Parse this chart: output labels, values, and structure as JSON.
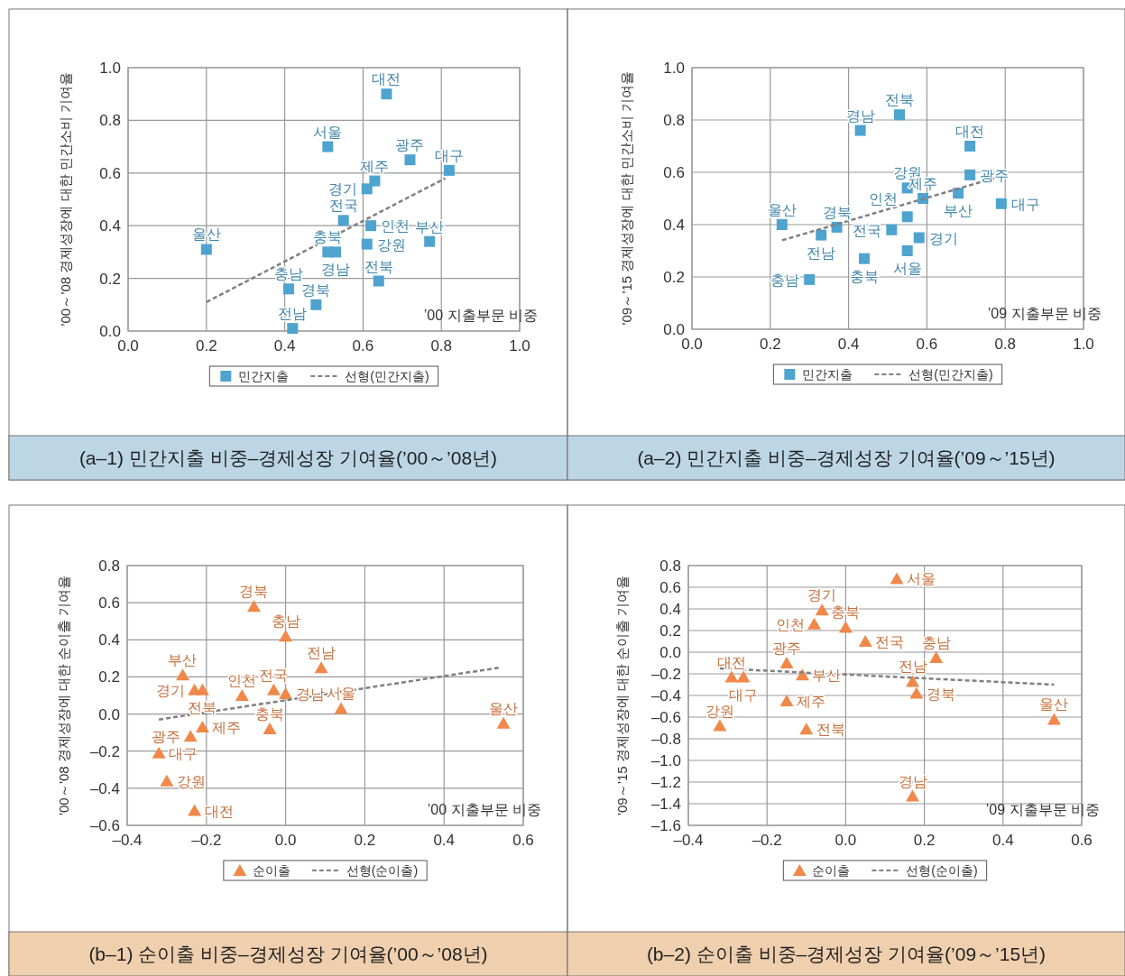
{
  "chart_data": [
    {
      "type": "scatter",
      "title": "(a–1) 민간지출 비중–경제성장 기여율(’00～’08년)",
      "ylabel": "’00～’08 경제성장에 대한 민간소비 기여율",
      "xlabel": "’00 지출부문 비중",
      "xlim": [
        0,
        1
      ],
      "ylim": [
        0,
        1
      ],
      "xticks": [
        {
          "value": 0,
          "label": "0.0"
        },
        {
          "value": 0.2,
          "label": "0.2"
        },
        {
          "value": 0.4,
          "label": "0.4"
        },
        {
          "value": 0.6,
          "label": "0.6"
        },
        {
          "value": 0.8,
          "label": "0.8"
        },
        {
          "value": 1,
          "label": "1.0"
        }
      ],
      "yticks": [
        {
          "value": 0,
          "label": "0.0"
        },
        {
          "value": 0.2,
          "label": "0.2"
        },
        {
          "value": 0.4,
          "label": "0.4"
        },
        {
          "value": 0.6,
          "label": "0.6"
        },
        {
          "value": 0.8,
          "label": "0.8"
        },
        {
          "value": 1,
          "label": "1.0"
        }
      ],
      "grid": true,
      "legend": "bottom",
      "series": [
        {
          "name": "민간지출",
          "type": "scatter",
          "marker": "square",
          "color": "#4fa3cf",
          "x": [
            0.66,
            0.51,
            0.72,
            0.82,
            0.63,
            0.61,
            0.55,
            0.62,
            0.2,
            0.51,
            0.53,
            0.61,
            0.77,
            0.64,
            0.41,
            0.48,
            0.42
          ],
          "values": [
            0.9,
            0.7,
            0.65,
            0.61,
            0.57,
            0.54,
            0.42,
            0.4,
            0.31,
            0.3,
            0.3,
            0.33,
            0.34,
            0.19,
            0.16,
            0.1,
            0.01
          ],
          "value_labels": [
            "대전",
            "서울",
            "광주",
            "대구",
            "제주",
            "경기",
            "전국",
            "인천",
            "울산",
            "충북",
            "경남",
            "강원",
            "부산",
            "전북",
            "충남",
            "경북",
            "전남"
          ]
        },
        {
          "name": "선형(민간지출)",
          "type": "line",
          "marker": "none",
          "line_style": "dashed",
          "color": "#808080",
          "x": [
            0.2,
            0.81
          ],
          "values": [
            0.11,
            0.58
          ]
        }
      ]
    },
    {
      "type": "scatter",
      "title": "(a–2) 민간지출 비중–경제성장 기여율(’09～’15년)",
      "ylabel": "’09～’15 경제성장에 대한 민간소비 기여율",
      "xlabel": "’09 지출부문 비중",
      "xlim": [
        0,
        1
      ],
      "ylim": [
        0,
        1
      ],
      "xticks": [
        {
          "value": 0,
          "label": "0.0"
        },
        {
          "value": 0.2,
          "label": "0.2"
        },
        {
          "value": 0.4,
          "label": "0.4"
        },
        {
          "value": 0.6,
          "label": "0.6"
        },
        {
          "value": 0.8,
          "label": "0.8"
        },
        {
          "value": 1,
          "label": "1.0"
        }
      ],
      "yticks": [
        {
          "value": 0,
          "label": "0.0"
        },
        {
          "value": 0.2,
          "label": "0.2"
        },
        {
          "value": 0.4,
          "label": "0.4"
        },
        {
          "value": 0.6,
          "label": "0.6"
        },
        {
          "value": 0.8,
          "label": "0.8"
        },
        {
          "value": 1,
          "label": "1.0"
        }
      ],
      "grid": true,
      "legend": "bottom",
      "series": [
        {
          "name": "민간지출",
          "type": "scatter",
          "marker": "square",
          "color": "#4fa3cf",
          "x": [
            0.53,
            0.43,
            0.71,
            0.71,
            0.68,
            0.55,
            0.59,
            0.79,
            0.55,
            0.51,
            0.58,
            0.55,
            0.23,
            0.33,
            0.37,
            0.44,
            0.3
          ],
          "values": [
            0.82,
            0.76,
            0.7,
            0.59,
            0.52,
            0.54,
            0.5,
            0.48,
            0.43,
            0.38,
            0.35,
            0.3,
            0.4,
            0.36,
            0.39,
            0.27,
            0.19
          ],
          "value_labels": [
            "전북",
            "경남",
            "대전",
            "광주",
            "부산",
            "강원",
            "제주",
            "대구",
            "인천",
            "전국",
            "경기",
            "서울",
            "울산",
            "전남",
            "경북",
            "충북",
            "충남"
          ]
        },
        {
          "name": "선형(민간지출)",
          "type": "line",
          "marker": "none",
          "line_style": "dashed",
          "color": "#808080",
          "x": [
            0.23,
            0.8
          ],
          "values": [
            0.34,
            0.59
          ]
        }
      ]
    },
    {
      "type": "scatter",
      "title": "(b–1) 순이출 비중–경제성장 기여율(’00～’08년)",
      "ylabel": "’00～’08 경제성장에 대한 순이출 기여율",
      "xlabel": "’00 지출부문 비중",
      "xlim": [
        -0.4,
        0.6
      ],
      "ylim": [
        -0.6,
        0.8
      ],
      "xticks": [
        {
          "value": -0.4,
          "label": "–0.4"
        },
        {
          "value": -0.2,
          "label": "–0.2"
        },
        {
          "value": 0,
          "label": "0.0"
        },
        {
          "value": 0.2,
          "label": "0.2"
        },
        {
          "value": 0.4,
          "label": "0.4"
        },
        {
          "value": 0.6,
          "label": "0.6"
        }
      ],
      "yticks": [
        {
          "value": -0.6,
          "label": "–0.6"
        },
        {
          "value": -0.4,
          "label": "–0.4"
        },
        {
          "value": -0.2,
          "label": "–0.2"
        },
        {
          "value": 0,
          "label": "0.0"
        },
        {
          "value": 0.2,
          "label": "0.2"
        },
        {
          "value": 0.4,
          "label": "0.4"
        },
        {
          "value": 0.6,
          "label": "0.6"
        },
        {
          "value": 0.8,
          "label": "0.8"
        }
      ],
      "grid": true,
      "legend": "bottom",
      "series": [
        {
          "name": "순이출",
          "type": "scatter",
          "marker": "triangle",
          "color": "#f0884a",
          "x": [
            -0.08,
            0,
            0.09,
            -0.26,
            -0.23,
            -0.21,
            -0.11,
            -0.03,
            0,
            0.14,
            -0.21,
            -0.24,
            -0.04,
            -0.32,
            -0.3,
            -0.23,
            0.55
          ],
          "values": [
            0.58,
            0.42,
            0.25,
            0.21,
            0.13,
            0.13,
            0.1,
            0.13,
            0.11,
            0.03,
            -0.07,
            -0.12,
            -0.08,
            -0.21,
            -0.36,
            -0.52,
            -0.05
          ],
          "value_labels": [
            "경북",
            "충남",
            "전남",
            "부산",
            "경기",
            "전북",
            "인천",
            "전국",
            "경남",
            "서울",
            "제주",
            "광주",
            "충북",
            "대구",
            "강원",
            "대전",
            "울산"
          ]
        },
        {
          "name": "선형(순이출)",
          "type": "line",
          "marker": "none",
          "line_style": "dashed",
          "color": "#808080",
          "x": [
            -0.32,
            0.54
          ],
          "values": [
            -0.03,
            0.25
          ]
        }
      ]
    },
    {
      "type": "scatter",
      "title": "(b–2) 순이출 비중–경제성장 기여율(’09～’15년)",
      "ylabel": "’09～’15 경제성장에 대한 순이출 기여율",
      "xlabel": "’09 지출부문 비중",
      "xlim": [
        -0.4,
        0.6
      ],
      "ylim": [
        -1.6,
        0.8
      ],
      "xticks": [
        {
          "value": -0.4,
          "label": "–0.4"
        },
        {
          "value": -0.2,
          "label": "–0.2"
        },
        {
          "value": 0,
          "label": "0.0"
        },
        {
          "value": 0.2,
          "label": "0.2"
        },
        {
          "value": 0.4,
          "label": "0.4"
        },
        {
          "value": 0.6,
          "label": "0.6"
        }
      ],
      "yticks": [
        {
          "value": -1.6,
          "label": "–1.6"
        },
        {
          "value": -1.4,
          "label": "–1.4"
        },
        {
          "value": -1.2,
          "label": "–1.2"
        },
        {
          "value": -1,
          "label": "–1.0"
        },
        {
          "value": -0.8,
          "label": "–0.8"
        },
        {
          "value": -0.6,
          "label": "–0.6"
        },
        {
          "value": -0.4,
          "label": "–0.4"
        },
        {
          "value": -0.2,
          "label": "–0.2"
        },
        {
          "value": 0,
          "label": "0.0"
        },
        {
          "value": 0.2,
          "label": "0.2"
        },
        {
          "value": 0.4,
          "label": "0.4"
        },
        {
          "value": 0.6,
          "label": "0.6"
        },
        {
          "value": 0.8,
          "label": "0.8"
        }
      ],
      "grid": true,
      "legend": "bottom",
      "series": [
        {
          "name": "순이출",
          "type": "scatter",
          "marker": "triangle",
          "color": "#f0884a",
          "x": [
            0.13,
            -0.06,
            -0.08,
            0,
            0.05,
            0.23,
            -0.15,
            -0.11,
            -0.29,
            -0.26,
            0.17,
            0.18,
            -0.15,
            -0.32,
            -0.1,
            0.17,
            0.53
          ],
          "values": [
            0.68,
            0.39,
            0.26,
            0.23,
            0.1,
            -0.05,
            -0.1,
            -0.21,
            -0.23,
            -0.23,
            -0.27,
            -0.38,
            -0.45,
            -0.68,
            -0.71,
            -1.33,
            -0.62
          ],
          "value_labels": [
            "서울",
            "경기",
            "인천",
            "충북",
            "전국",
            "충남",
            "광주",
            "부산",
            "대전",
            "대구",
            "전남",
            "경북",
            "제주",
            "강원",
            "전북",
            "경남",
            "울산"
          ]
        },
        {
          "name": "선형(순이출)",
          "type": "line",
          "marker": "none",
          "line_style": "dashed",
          "color": "#808080",
          "x": [
            -0.32,
            0.53
          ],
          "values": [
            -0.15,
            -0.3
          ]
        }
      ]
    }
  ]
}
